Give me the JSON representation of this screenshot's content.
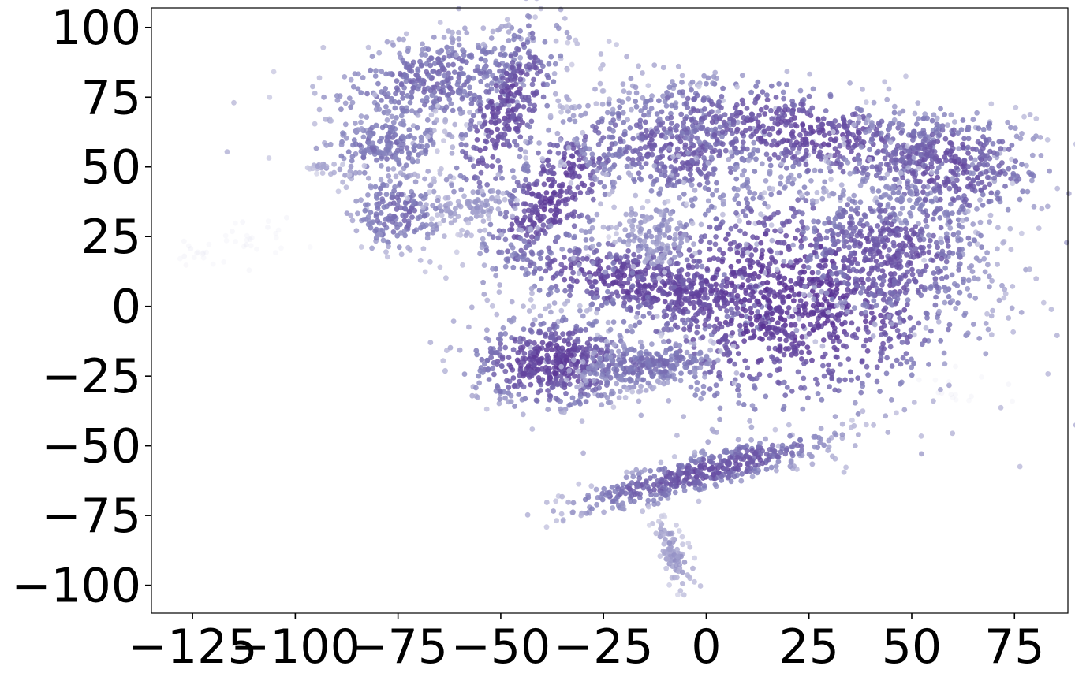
{
  "chart_data": {
    "type": "scatter",
    "title": "",
    "xlabel": "",
    "ylabel": "",
    "xlim": [
      -135,
      88
    ],
    "ylim": [
      -110,
      107
    ],
    "x_ticks": [
      -125,
      -100,
      -75,
      -50,
      -25,
      0,
      25,
      50,
      75
    ],
    "x_tick_labels": [
      "−125",
      "−100",
      "−75",
      "−50",
      "−25",
      "0",
      "25",
      "50",
      "75"
    ],
    "y_ticks": [
      100,
      75,
      50,
      25,
      0,
      -25,
      -50,
      -75,
      -100
    ],
    "y_tick_labels": [
      "100",
      "75",
      "50",
      "25",
      "0",
      "−25",
      "−50",
      "−75",
      "−100"
    ],
    "grid": false,
    "legend": "none",
    "colormap": "Purples",
    "colors": {
      "light": "#dadaeb",
      "mid": "#807dba",
      "dark": "#54278f"
    },
    "clusters": [
      {
        "cx": -66,
        "cy": 81,
        "sx": 14,
        "sy": 8,
        "rot": 20,
        "n": 420,
        "weight": 0.6
      },
      {
        "cx": -78,
        "cy": 57,
        "sx": 9,
        "sy": 6,
        "rot": 15,
        "n": 220,
        "weight": 0.55
      },
      {
        "cx": -49,
        "cy": 70,
        "sx": 5,
        "sy": 18,
        "rot": -15,
        "n": 320,
        "weight": 0.8
      },
      {
        "cx": -37,
        "cy": 40,
        "sx": 6,
        "sy": 16,
        "rot": -25,
        "n": 380,
        "weight": 0.85
      },
      {
        "cx": -16,
        "cy": 8,
        "sx": 18,
        "sy": 7,
        "rot": -20,
        "n": 520,
        "weight": 0.85
      },
      {
        "cx": -75,
        "cy": 34,
        "sx": 6,
        "sy": 7,
        "rot": 0,
        "n": 190,
        "weight": 0.6
      },
      {
        "cx": -58,
        "cy": 36,
        "sx": 5,
        "sy": 3,
        "rot": 0,
        "n": 60,
        "weight": 0.35
      },
      {
        "cx": -8,
        "cy": 56,
        "sx": 13,
        "sy": 9,
        "rot": -25,
        "n": 420,
        "weight": 0.7
      },
      {
        "cx": 24,
        "cy": 62,
        "sx": 22,
        "sy": 8,
        "rot": -18,
        "n": 620,
        "weight": 0.8
      },
      {
        "cx": 58,
        "cy": 50,
        "sx": 12,
        "sy": 10,
        "rot": -10,
        "n": 420,
        "weight": 0.75
      },
      {
        "cx": 20,
        "cy": 3,
        "sx": 22,
        "sy": 20,
        "rot": 0,
        "n": 1300,
        "weight": 0.9
      },
      {
        "cx": 45,
        "cy": 20,
        "sx": 12,
        "sy": 12,
        "rot": 0,
        "n": 420,
        "weight": 0.75
      },
      {
        "cx": -12,
        "cy": 25,
        "sx": 5,
        "sy": 6,
        "rot": 0,
        "n": 100,
        "weight": 0.4
      },
      {
        "cx": -37,
        "cy": -20,
        "sx": 10,
        "sy": 8,
        "rot": 0,
        "n": 520,
        "weight": 0.85
      },
      {
        "cx": -15,
        "cy": -21,
        "sx": 9,
        "sy": 4,
        "rot": 10,
        "n": 240,
        "weight": 0.6
      },
      {
        "cx": 0,
        "cy": -59,
        "sx": 17,
        "sy": 3.2,
        "rot": 22,
        "n": 460,
        "weight": 0.75
      },
      {
        "cx": -8,
        "cy": -89,
        "sx": 1.8,
        "sy": 6,
        "rot": 15,
        "n": 90,
        "weight": 0.35
      },
      {
        "cx": -94,
        "cy": 50,
        "sx": 2,
        "sy": 1,
        "rot": 0,
        "n": 15,
        "weight": 0.25
      },
      {
        "cx": -110,
        "cy": 25,
        "sx": 5,
        "sy": 5,
        "rot": 0,
        "n": 25,
        "weight": 0.02
      },
      {
        "cx": -125,
        "cy": 19,
        "sx": 3,
        "sy": 2,
        "rot": 0,
        "n": 15,
        "weight": 0.02
      },
      {
        "cx": 60,
        "cy": -30,
        "sx": 6,
        "sy": 4,
        "rot": 0,
        "n": 15,
        "weight": 0.02
      }
    ]
  }
}
